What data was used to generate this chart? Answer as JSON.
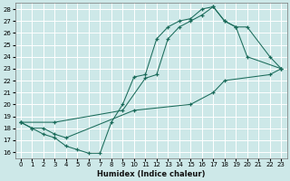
{
  "xlabel": "Humidex (Indice chaleur)",
  "xlim": [
    -0.5,
    23.5
  ],
  "ylim": [
    15.5,
    28.5
  ],
  "xticks": [
    0,
    1,
    2,
    3,
    4,
    5,
    6,
    7,
    8,
    9,
    10,
    11,
    12,
    13,
    14,
    15,
    16,
    17,
    18,
    19,
    20,
    21,
    22,
    23
  ],
  "yticks": [
    16,
    17,
    18,
    19,
    20,
    21,
    22,
    23,
    24,
    25,
    26,
    27,
    28
  ],
  "bg_color": "#cde8e8",
  "grid_color": "#ffffff",
  "line_color": "#1a6b5a",
  "s1x": [
    0,
    1,
    2,
    3,
    4,
    5,
    6,
    7,
    8,
    9,
    10,
    11,
    12,
    13,
    14,
    15,
    16,
    17,
    18,
    19,
    20,
    23
  ],
  "s1y": [
    18.5,
    18.0,
    17.5,
    17.2,
    16.5,
    16.2,
    15.9,
    15.9,
    18.5,
    20.0,
    22.3,
    22.5,
    25.5,
    26.5,
    27.0,
    27.2,
    28.0,
    28.2,
    27.0,
    26.5,
    24.0,
    23.0
  ],
  "s2x": [
    0,
    1,
    2,
    3,
    4,
    10,
    15,
    17,
    18,
    22,
    23
  ],
  "s2y": [
    18.5,
    18.0,
    18.0,
    17.5,
    17.2,
    19.5,
    20.0,
    21.0,
    22.0,
    22.5,
    23.0
  ],
  "s3x": [
    0,
    3,
    9,
    11,
    12,
    13,
    14,
    15,
    16,
    17,
    18,
    19,
    20,
    22,
    23
  ],
  "s3y": [
    18.5,
    18.5,
    19.5,
    22.2,
    22.5,
    25.5,
    26.5,
    27.0,
    27.5,
    28.2,
    27.0,
    26.5,
    26.5,
    24.0,
    23.0
  ]
}
